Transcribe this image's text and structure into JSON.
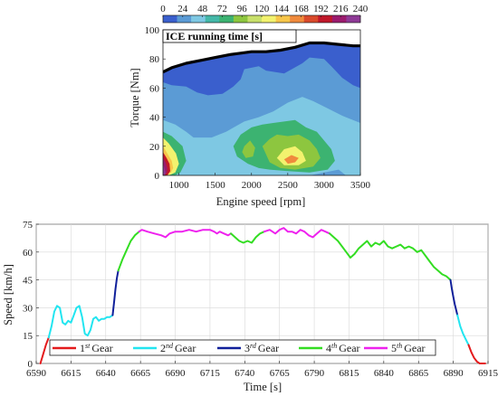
{
  "chart_data": [
    {
      "type": "heatmap",
      "title": "",
      "annotation": "ICE running time [s]",
      "xlabel": "Engine speed [rpm]",
      "ylabel": "Torque [Nm]",
      "xlim": [
        780,
        3500
      ],
      "ylim": [
        0,
        100
      ],
      "xticks": [
        1000,
        1500,
        2000,
        2500,
        3000,
        3500
      ],
      "yticks": [
        0,
        20,
        40,
        60,
        80,
        100
      ],
      "colorbar": {
        "min": 0,
        "max": 240,
        "ticks": [
          0,
          24,
          48,
          72,
          96,
          120,
          144,
          168,
          192,
          216,
          240
        ],
        "colors": [
          "#3a5fcd",
          "#5b9bd5",
          "#7ec8e3",
          "#44b8a8",
          "#3cb371",
          "#8dc63f",
          "#c8e06a",
          "#f2f26e",
          "#f7c64a",
          "#f08a3c",
          "#d94a2b",
          "#c0182a",
          "#9b1b6e",
          "#8e3a96"
        ]
      },
      "boundary_curve": {
        "x": [
          780,
          900,
          1100,
          1300,
          1500,
          1700,
          1850,
          2000,
          2200,
          2400,
          2600,
          2800,
          3000,
          3200,
          3400,
          3500
        ],
        "y": [
          71,
          74,
          77,
          79,
          81,
          83,
          84,
          85,
          85,
          86,
          88,
          91,
          91,
          90,
          89,
          89
        ]
      },
      "regions": [
        {
          "level": 24,
          "x": [
            780,
            900,
            1100,
            1250,
            1400,
            1600,
            1750,
            1850,
            1900,
            2100,
            2200,
            2450,
            2700,
            2800,
            3000,
            3100,
            3250,
            3400,
            3500,
            3500,
            780
          ],
          "y": [
            64,
            62,
            61,
            57,
            55,
            56,
            61,
            66,
            73,
            75,
            72,
            70,
            77,
            81,
            80,
            75,
            67,
            62,
            60,
            0,
            0
          ]
        },
        {
          "level": 48,
          "x": [
            780,
            950,
            1100,
            1200,
            1450,
            1650,
            1900,
            2100,
            2300,
            2500,
            2700,
            2850,
            3050,
            3250,
            3500,
            3500,
            3300,
            3200,
            2800,
            2500,
            2200,
            2050,
            1950,
            1900,
            1700,
            1300,
            1000,
            780
          ],
          "y": [
            38,
            35,
            30,
            26,
            26,
            30,
            37,
            40,
            44,
            50,
            54,
            51,
            46,
            41,
            36,
            0,
            0,
            4,
            0,
            0,
            0,
            0,
            0,
            0,
            0,
            0,
            0,
            0
          ]
        },
        {
          "level": 72,
          "x": [
            780,
            900,
            1050,
            1100,
            1020,
            940,
            780
          ],
          "y": [
            30,
            27,
            20,
            10,
            2,
            0,
            0
          ]
        },
        {
          "level": 72,
          "x": [
            1750,
            1850,
            2000,
            2150,
            2300,
            2450,
            2600,
            2750,
            2900,
            3000,
            3100,
            3150,
            3050,
            2800,
            2500,
            2250,
            2100,
            1950,
            1800,
            1750
          ],
          "y": [
            20,
            28,
            33,
            35,
            36,
            37,
            38,
            33,
            30,
            24,
            18,
            10,
            4,
            2,
            3,
            4,
            5,
            8,
            13,
            20
          ]
        },
        {
          "level": 96,
          "x": [
            2150,
            2250,
            2350,
            2500,
            2650,
            2800,
            2900,
            2950,
            2850,
            2600,
            2400,
            2250,
            2150
          ],
          "y": [
            20,
            25,
            28,
            27,
            28,
            24,
            18,
            12,
            6,
            4,
            5,
            9,
            20
          ]
        },
        {
          "level": 96,
          "x": [
            1900,
            1980,
            2050,
            2020,
            1920,
            1870,
            1900
          ],
          "y": [
            20,
            24,
            19,
            13,
            12,
            16,
            20
          ]
        },
        {
          "level": 120,
          "x": [
            2350,
            2450,
            2600,
            2700,
            2750,
            2650,
            2450,
            2350
          ],
          "y": [
            12,
            18,
            20,
            16,
            10,
            7,
            7,
            12
          ]
        },
        {
          "level": 120,
          "x": [
            780,
            860,
            960,
            1000,
            950,
            860,
            780
          ],
          "y": [
            26,
            22,
            15,
            8,
            2,
            0,
            0
          ]
        },
        {
          "level": 144,
          "x": [
            780,
            840,
            900,
            920,
            890,
            820,
            780
          ],
          "y": [
            20,
            15,
            10,
            5,
            2,
            0,
            0
          ]
        },
        {
          "level": 168,
          "x": [
            2450,
            2550,
            2650,
            2600,
            2500,
            2450
          ],
          "y": [
            11,
            14,
            12,
            9,
            8,
            11
          ]
        },
        {
          "level": 192,
          "x": [
            780,
            830,
            870,
            880,
            840,
            780
          ],
          "y": [
            16,
            12,
            8,
            3,
            0,
            0
          ]
        },
        {
          "level": 216,
          "x": [
            780,
            815,
            840,
            835,
            800,
            780
          ],
          "y": [
            12,
            9,
            5,
            2,
            0,
            0
          ]
        },
        {
          "level": 240,
          "x": [
            780,
            800,
            815,
            805,
            780
          ],
          "y": [
            8,
            5,
            2,
            0,
            0
          ]
        }
      ]
    },
    {
      "type": "line",
      "title": "",
      "xlabel": "Time [s]",
      "ylabel": "Speed [km/h]",
      "xlim": [
        6590,
        6915
      ],
      "ylim": [
        0,
        75
      ],
      "xticks": [
        6590,
        6615,
        6640,
        6665,
        6690,
        6715,
        6740,
        6765,
        6790,
        6815,
        6840,
        6865,
        6890,
        6915
      ],
      "yticks": [
        0,
        15,
        30,
        45,
        60,
        75
      ],
      "legend": {
        "position": "bottom-left",
        "entries": [
          {
            "base": "1",
            "sup": "st",
            "suffix": "Gear",
            "color": "#e41a1c"
          },
          {
            "base": "2",
            "sup": "nd",
            "suffix": "Gear",
            "color": "#22e5f0"
          },
          {
            "base": "3",
            "sup": "rd",
            "suffix": "Gear",
            "color": "#10209a"
          },
          {
            "base": "4",
            "sup": "th",
            "suffix": "Gear",
            "color": "#33dd22"
          },
          {
            "base": "5",
            "sup": "th",
            "suffix": "Gear",
            "color": "#ee22ee"
          }
        ]
      },
      "series": [
        {
          "gear": 1,
          "x": [
            6593,
            6595,
            6597,
            6599
          ],
          "y": [
            0,
            5,
            10,
            14
          ]
        },
        {
          "gear": 2,
          "x": [
            6599,
            6601,
            6603,
            6605,
            6607,
            6609,
            6611,
            6613,
            6615,
            6617,
            6619,
            6621,
            6623,
            6625,
            6627,
            6629,
            6631,
            6633,
            6635,
            6637,
            6639,
            6641,
            6643,
            6645
          ],
          "y": [
            14,
            20,
            28,
            31,
            30,
            22,
            21,
            23,
            22,
            26,
            30,
            31,
            25,
            16,
            15,
            18,
            24,
            25,
            23,
            24,
            24,
            25,
            25,
            26
          ]
        },
        {
          "gear": 3,
          "x": [
            6645,
            6646,
            6647,
            6648,
            6649
          ],
          "y": [
            26,
            33,
            40,
            46,
            50
          ]
        },
        {
          "gear": 4,
          "x": [
            6649,
            6652,
            6655,
            6658,
            6661,
            6664
          ],
          "y": [
            50,
            56,
            61,
            66,
            69,
            71
          ]
        },
        {
          "gear": 5,
          "x": [
            6664,
            6666,
            6670,
            6675,
            6680,
            6683,
            6686,
            6690,
            6695,
            6700,
            6705,
            6710,
            6715,
            6718,
            6720,
            6722,
            6725,
            6728,
            6730
          ],
          "y": [
            71,
            72,
            71,
            70,
            69,
            68,
            70,
            71,
            71,
            72,
            71,
            72,
            72,
            71,
            70,
            71,
            70,
            69,
            70
          ]
        },
        {
          "gear": 4,
          "x": [
            6730,
            6733,
            6736,
            6739,
            6742,
            6745,
            6748,
            6751,
            6754
          ],
          "y": [
            70,
            68,
            66,
            65,
            66,
            65,
            68,
            70,
            71
          ]
        },
        {
          "gear": 5,
          "x": [
            6754,
            6758,
            6762,
            6765,
            6768,
            6771,
            6774,
            6777,
            6780,
            6783,
            6786,
            6789,
            6792,
            6795,
            6798,
            6801
          ],
          "y": [
            71,
            72,
            70,
            72,
            73,
            71,
            71,
            70,
            72,
            71,
            69,
            68,
            70,
            72,
            71,
            70
          ]
        },
        {
          "gear": 4,
          "x": [
            6801,
            6804,
            6807,
            6810,
            6813,
            6816,
            6819,
            6822,
            6825,
            6828,
            6831,
            6834,
            6837,
            6840,
            6843,
            6846,
            6849,
            6852,
            6855,
            6858,
            6861,
            6864,
            6867,
            6870,
            6873,
            6876,
            6879,
            6882,
            6885,
            6888
          ],
          "y": [
            70,
            68,
            66,
            63,
            60,
            57,
            59,
            62,
            64,
            66,
            63,
            65,
            64,
            66,
            63,
            62,
            63,
            64,
            62,
            63,
            62,
            60,
            61,
            58,
            55,
            52,
            50,
            48,
            47,
            45
          ]
        },
        {
          "gear": 3,
          "x": [
            6888,
            6889,
            6890,
            6891,
            6892,
            6893
          ],
          "y": [
            45,
            40,
            36,
            32,
            29,
            26
          ]
        },
        {
          "gear": 2,
          "x": [
            6893,
            6895,
            6897,
            6899,
            6901
          ],
          "y": [
            26,
            20,
            16,
            13,
            10
          ]
        },
        {
          "gear": 1,
          "x": [
            6901,
            6903,
            6905,
            6907,
            6909,
            6911,
            6913
          ],
          "y": [
            10,
            6,
            3,
            1,
            0,
            0,
            0
          ]
        }
      ]
    }
  ]
}
